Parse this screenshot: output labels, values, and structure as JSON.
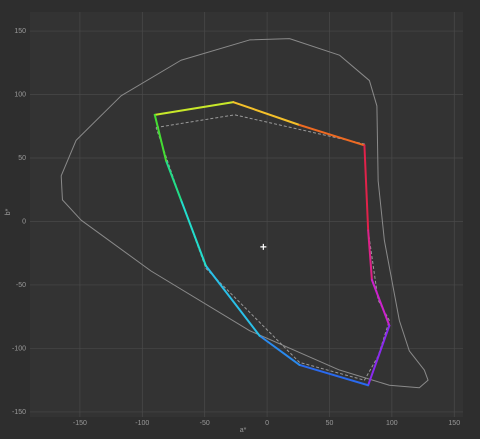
{
  "chart_data": {
    "type": "gamut",
    "x_label": "a*",
    "y_label": "b*",
    "xlim": [
      -190,
      157
    ],
    "ylim": [
      -154,
      165
    ],
    "xticks": [
      -150,
      -100,
      -50,
      0,
      50,
      100,
      150
    ],
    "yticks": [
      -150,
      -100,
      -50,
      0,
      50,
      100,
      150
    ],
    "grid": true,
    "boundary": {
      "color": "#8a8a8a",
      "x": [
        18,
        58,
        82,
        88,
        89,
        94,
        106,
        114,
        126,
        129,
        122,
        98,
        58,
        -14,
        -93,
        -149,
        -164,
        -165,
        -153,
        -117,
        -69,
        -14,
        18
      ],
      "y": [
        144,
        131,
        111,
        91,
        32,
        -15,
        -78,
        -102,
        -117,
        -125,
        -131,
        -129,
        -117,
        -86,
        -39,
        1,
        17,
        36,
        64,
        99,
        127,
        143,
        144
      ]
    },
    "reference": {
      "color": "#9a9a9a",
      "x": [
        -89,
        -26,
        78,
        81,
        89,
        98,
        89,
        78,
        26,
        -49,
        -69,
        -89
      ],
      "y": [
        74,
        84,
        61,
        -7,
        -62,
        -78,
        -106,
        -125,
        -111,
        -37,
        17,
        74
      ]
    },
    "gamut": {
      "x": [
        -90,
        -27,
        26,
        78,
        81,
        84,
        98,
        81,
        26,
        -6,
        -49,
        -69,
        -81,
        -90
      ],
      "y": [
        84,
        94,
        76,
        60,
        -7,
        -46,
        -82,
        -129,
        -113,
        -90,
        -35,
        17,
        48,
        84
      ],
      "colors": [
        "#c8e82a",
        "#f4c02a",
        "#ee6a22",
        "#e0224a",
        "#dd2288",
        "#cc22cc",
        "#8a2aee",
        "#2a6aee",
        "#2a8aee",
        "#2ac0e8",
        "#22ddcc",
        "#22dd88",
        "#44dd33"
      ]
    },
    "white_point": {
      "x": -3,
      "y": -20,
      "color": "#ffffff"
    }
  }
}
